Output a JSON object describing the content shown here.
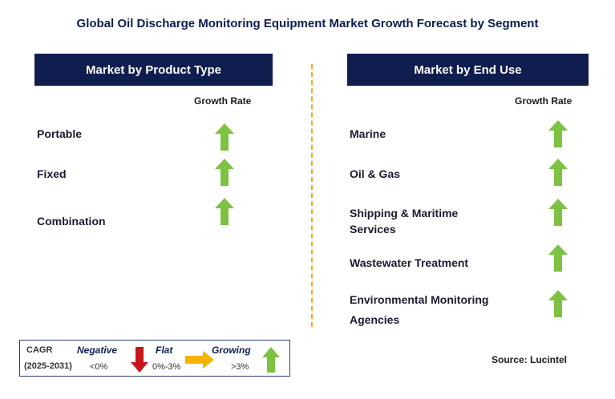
{
  "title": "Global Oil Discharge Monitoring Equipment Market Growth Forecast by Segment",
  "left_panel": {
    "header": "Market by Product Type",
    "growth_rate_label": "Growth Rate",
    "items": [
      {
        "label": "Portable",
        "trend": "growing"
      },
      {
        "label": "Fixed",
        "trend": "growing"
      },
      {
        "label": "Combination",
        "trend": "growing"
      }
    ]
  },
  "right_panel": {
    "header": "Market by End Use",
    "growth_rate_label": "Growth Rate",
    "items": [
      {
        "label_lines": [
          "Marine"
        ],
        "trend": "growing"
      },
      {
        "label_lines": [
          "Oil & Gas"
        ],
        "trend": "growing"
      },
      {
        "label_lines": [
          "Shipping & Maritime",
          "Services"
        ],
        "trend": "growing"
      },
      {
        "label_lines": [
          "Wastewater Treatment"
        ],
        "trend": "growing"
      },
      {
        "label_lines": [
          "Environmental Monitoring",
          "Agencies"
        ],
        "trend": "growing"
      }
    ]
  },
  "legend": {
    "cagr_label": "CAGR",
    "period": "(2025-2031)",
    "negative_label": "Negative",
    "negative_range": "<0%",
    "flat_label": "Flat",
    "flat_range": "0%-3%",
    "growing_label": "Growing",
    "growing_range": ">3%"
  },
  "source": "Source: Lucintel",
  "colors": {
    "header_bg": "#0f1d4f",
    "growing": "#7dc242",
    "negative": "#c8161d",
    "flat": "#f5b400",
    "divider": "#f5a623"
  }
}
